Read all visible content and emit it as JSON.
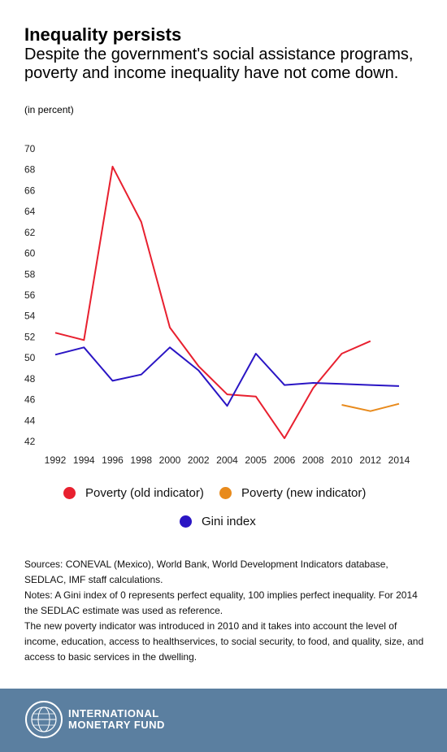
{
  "header": {
    "title": "Inequality persists",
    "subtitle": "Despite the government's social assistance programs, poverty and income inequality have not come down.",
    "unit": "(in percent)"
  },
  "chart_data": {
    "type": "line",
    "title": "Inequality persists",
    "subtitle": "Despite the government's social assistance programs, poverty and income inequality have not come down.",
    "ylabel": "(in percent)",
    "xlabel": "",
    "ylim": [
      42,
      70
    ],
    "yticks": [
      70,
      68,
      66,
      64,
      62,
      60,
      58,
      56,
      54,
      52,
      50,
      48,
      46,
      44,
      42
    ],
    "categories": [
      "1992",
      "1994",
      "1996",
      "1998",
      "2000",
      "2002",
      "2004",
      "2005",
      "2006",
      "2008",
      "2010",
      "2012",
      "2014"
    ],
    "grid": false,
    "legend_position": "bottom",
    "series": [
      {
        "name": "Poverty (old indicator)",
        "color": "#e8202f",
        "values": [
          52.4,
          51.7,
          68.3,
          63.0,
          52.9,
          49.2,
          46.5,
          46.3,
          42.3,
          47.1,
          50.4,
          51.6,
          null
        ]
      },
      {
        "name": "Poverty (new indicator)",
        "color": "#e88a1c",
        "values": [
          null,
          null,
          null,
          null,
          null,
          null,
          null,
          null,
          null,
          null,
          45.5,
          44.9,
          45.6
        ]
      },
      {
        "name": "Gini index",
        "color": "#2a15c4",
        "values": [
          50.3,
          51.0,
          47.8,
          48.4,
          51.0,
          48.8,
          45.4,
          50.4,
          47.4,
          47.6,
          47.5,
          47.4,
          47.3
        ]
      }
    ]
  },
  "legend": {
    "items": [
      {
        "label": "Poverty (old indicator)",
        "color": "#e8202f"
      },
      {
        "label": "Poverty (new indicator)",
        "color": "#e88a1c"
      },
      {
        "label": "Gini index",
        "color": "#2a15c4"
      }
    ]
  },
  "notes": {
    "sources": "Sources: CONEVAL (Mexico), World Bank, World Development Indicators database, SEDLAC, IMF staff calculations.",
    "gini_note": "Notes: A Gini index of 0 represents perfect equality, 100 implies perfect inequality. For 2014 the SEDLAC estimate was  used as reference.",
    "poverty_note": "The new poverty indicator was introduced in 2010 and it takes into account the level of income, education, access to healthservices, to social security, to food, and quality, size, and access to basic services in the dwelling."
  },
  "footer": {
    "brand_line1": "INTERNATIONAL",
    "brand_line2": "MONETARY FUND",
    "footer_color": "#5b7fa0",
    "logo_icon": "imf-seal-icon"
  }
}
